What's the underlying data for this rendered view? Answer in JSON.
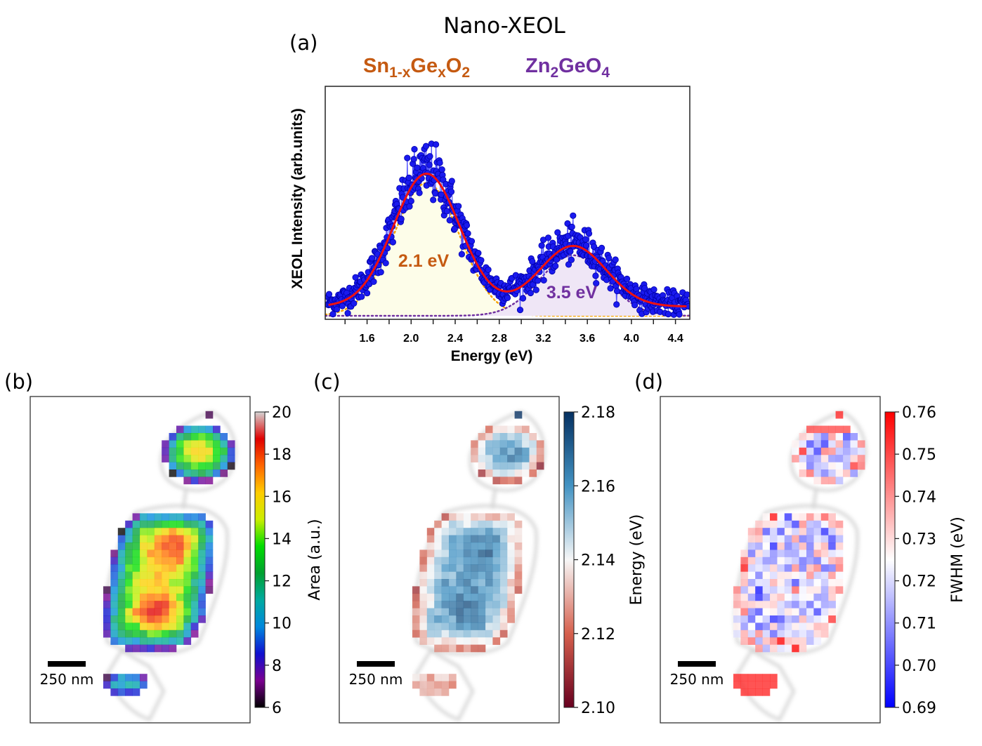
{
  "chart_data": [
    {
      "type": "scatter",
      "panel_label": "(a)",
      "title": "Nano-XEOL",
      "xlabel": "Energy (eV)",
      "ylabel": "XEOL Intensity (arb.units)",
      "xlim": [
        1.22,
        4.53
      ],
      "ylim": [
        0,
        1
      ],
      "xticks": [
        1.6,
        2.0,
        2.4,
        2.8,
        3.2,
        3.6,
        4.0,
        4.4
      ],
      "xtick_labels": [
        "1.6",
        "2.0",
        "2.4",
        "2.8",
        "3.2",
        "3.6",
        "4.0",
        "4.4"
      ],
      "y_ticks_shown": false,
      "grid": false,
      "species": [
        {
          "base": "Sn",
          "sub1": "1-x",
          "mid": "Ge",
          "sub2": "x",
          "tail": "O",
          "sub3": "2",
          "color": "#c55a11"
        },
        {
          "base": "Zn",
          "sub1": "2",
          "mid": "GeO",
          "sub2": "4",
          "tail": "",
          "sub3": "",
          "color": "#7030a0"
        }
      ],
      "components": [
        {
          "label": "2.1 eV",
          "center": 2.14,
          "amplitude": 0.57,
          "sigma": 0.3,
          "color": "#c55a11",
          "line_color": "#f5a300",
          "fill": "#fdfde9"
        },
        {
          "label": "3.5 eV",
          "center": 3.47,
          "amplitude": 0.26,
          "sigma": 0.3,
          "color": "#7030a0",
          "line_color": "#7030a0",
          "fill": "#efe6f6"
        }
      ],
      "fit": {
        "offset": 0.055,
        "color": "#ee1111"
      },
      "data_series": {
        "color": "#1a1aee",
        "x_start": 1.24,
        "x_end": 4.52,
        "step": 0.005
      }
    },
    {
      "type": "heatmap",
      "panel_label": "(b)",
      "colorbar_label": "Area (a.u.)",
      "clim": [
        6,
        20
      ],
      "colorbar_ticks": [
        "6",
        "8",
        "10",
        "12",
        "14",
        "16",
        "18",
        "20"
      ],
      "colormap": [
        "#000000",
        "#7a0090",
        "#1010d0",
        "#0088dd",
        "#00aaa0",
        "#00a030",
        "#00dd00",
        "#ccee00",
        "#ffcc00",
        "#ff6600",
        "#e00000",
        "#d4d4d4"
      ],
      "scale_bar": "250 nm"
    },
    {
      "type": "heatmap",
      "panel_label": "(c)",
      "colorbar_label": "Energy (eV)",
      "clim": [
        2.1,
        2.18
      ],
      "colorbar_ticks": [
        "2.10",
        "2.12",
        "2.14",
        "2.16",
        "2.18"
      ],
      "colormap": [
        "#67001f",
        "#d6604d",
        "#f7f7f7",
        "#4393c3",
        "#053061"
      ],
      "scale_bar": "250 nm"
    },
    {
      "type": "heatmap",
      "panel_label": "(d)",
      "colorbar_label": "FWHM (eV)",
      "clim": [
        0.69,
        0.76
      ],
      "colorbar_ticks": [
        "0.69",
        "0.70",
        "0.71",
        "0.72",
        "0.73",
        "0.74",
        "0.75",
        "0.76"
      ],
      "colormap": [
        "#0000ff",
        "#ffffff",
        "#ff0000"
      ],
      "scale_bar": "250 nm"
    }
  ]
}
